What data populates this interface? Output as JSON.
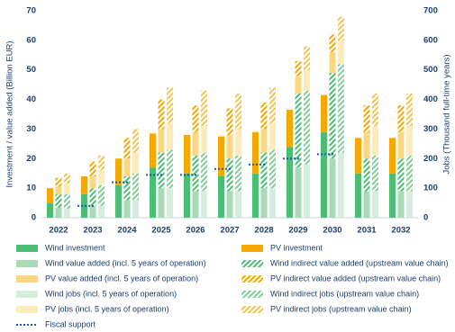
{
  "chart_data": {
    "type": "bar",
    "categories": [
      "2022",
      "2023",
      "2024",
      "2025",
      "2026",
      "2027",
      "2028",
      "2029",
      "2030",
      "2031",
      "2032"
    ],
    "y_label": "Investment / value added (Billion EUR)",
    "y2_label": "Jobs (Thousand full-time years)",
    "ylim": [
      0,
      70
    ],
    "yticks": [
      0,
      10,
      20,
      30,
      40,
      50,
      60,
      70
    ],
    "y2lim": [
      0,
      700
    ],
    "y2ticks": [
      0,
      100,
      200,
      300,
      400,
      500,
      600,
      700
    ],
    "series": [
      {
        "name": "Wind investment",
        "color": "#4cbd74",
        "stack": "investment",
        "values": [
          5,
          8,
          11,
          17,
          15,
          14,
          15,
          24,
          29,
          15,
          15
        ]
      },
      {
        "name": "PV investment",
        "color": "#f5a800",
        "stack": "investment",
        "values": [
          5,
          6,
          9,
          11.5,
          13,
          13.5,
          14,
          12.5,
          12.5,
          12,
          12
        ]
      },
      {
        "name": "Wind value added (incl. 5 years of operation)",
        "color": "#a8dbb4",
        "stack": "value",
        "values": [
          3.5,
          4,
          6,
          10,
          9,
          9,
          10,
          17,
          20,
          9,
          9
        ]
      },
      {
        "name": "Wind indirect value added (upstream value chain)",
        "color": "#4cbd74",
        "hatched": true,
        "stack": "value",
        "values": [
          4.5,
          6,
          8,
          12,
          12,
          11,
          12,
          25,
          29,
          11,
          11
        ]
      },
      {
        "name": "PV value added (incl. 5 years of operation)",
        "color": "#fcd77f",
        "stack": "value",
        "values": [
          2.5,
          4,
          6,
          8,
          8,
          8,
          8,
          6,
          7,
          9,
          9
        ]
      },
      {
        "name": "PV indirect value added (upstream value chain)",
        "color": "#f5a800",
        "hatched": true,
        "stack": "value",
        "values": [
          3,
          5,
          7,
          10,
          9,
          9,
          9,
          5,
          6,
          9,
          9
        ]
      },
      {
        "name": "Wind jobs (incl. 5 years of operation)",
        "color": "#d3efdb",
        "stack": "jobs",
        "axis": "y2",
        "values": [
          30,
          40,
          60,
          100,
          90,
          90,
          100,
          180,
          220,
          90,
          90
        ]
      },
      {
        "name": "Wind indirect jobs (upstream value chain)",
        "color": "#7fcf97",
        "hatched": true,
        "stack": "jobs",
        "axis": "y2",
        "values": [
          50,
          70,
          90,
          130,
          130,
          120,
          130,
          250,
          300,
          120,
          120
        ]
      },
      {
        "name": "PV jobs (incl. 5 years of operation)",
        "color": "#fdebb8",
        "stack": "jobs",
        "axis": "y2",
        "values": [
          35,
          50,
          70,
          90,
          90,
          90,
          90,
          70,
          80,
          100,
          100
        ]
      },
      {
        "name": "PV indirect jobs (upstream value chain)",
        "color": "#f7c34a",
        "hatched": true,
        "stack": "jobs",
        "axis": "y2",
        "values": [
          35,
          50,
          80,
          120,
          120,
          120,
          120,
          80,
          80,
          110,
          110
        ]
      },
      {
        "name": "Fiscal support",
        "color": "#1f5aa6",
        "line_style": "dotted",
        "values": [
          null,
          4,
          12,
          14.5,
          14.5,
          16.5,
          18,
          20,
          21.5,
          null,
          null
        ]
      }
    ]
  }
}
